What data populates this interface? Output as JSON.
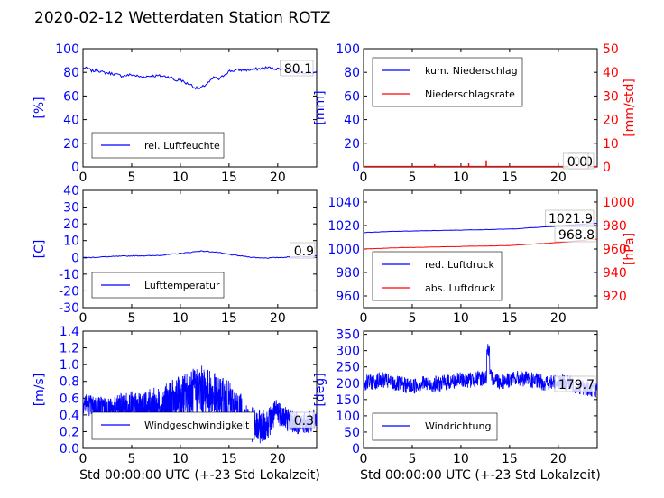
{
  "figure": {
    "title": "2020-02-12 Wetterdaten Station ROTZ"
  },
  "chart_data": [
    {
      "type": "line",
      "ylabel": "[%]",
      "ylim": [
        0,
        100
      ],
      "yticks": [
        0,
        20,
        40,
        60,
        80,
        100
      ],
      "xlim": [
        0,
        24
      ],
      "xticks": [
        0,
        5,
        10,
        15,
        20
      ],
      "legend_placement": "lower-left",
      "series": [
        {
          "name": "rel. Luftfeuchte",
          "color": "#0000ff",
          "x": [
            0,
            0.5,
            1,
            1.5,
            2,
            3,
            4,
            5,
            6,
            7,
            8,
            9,
            9.5,
            10,
            10.5,
            11,
            11.5,
            12,
            12.5,
            13,
            13.5,
            14,
            14.5,
            15,
            16,
            17,
            18,
            19,
            20,
            21,
            22,
            23,
            24
          ],
          "values": [
            84,
            83,
            81,
            82,
            80,
            79,
            77,
            78,
            76,
            77,
            77,
            76,
            73,
            74,
            71,
            70,
            67,
            66,
            69,
            72,
            76,
            74,
            78,
            81,
            82,
            82,
            83,
            84,
            83,
            82,
            80,
            80,
            80
          ]
        }
      ],
      "annotation": "80.1"
    },
    {
      "type": "line",
      "ylabel": "[mm]",
      "ylim": [
        0,
        100
      ],
      "yticks": [
        0,
        20,
        40,
        60,
        80,
        100
      ],
      "ylabel_right": "[mm/std]",
      "ylim_right": [
        0,
        50
      ],
      "yticks_right": [
        0,
        10,
        20,
        30,
        40,
        50
      ],
      "xlim": [
        0,
        24
      ],
      "xticks": [
        0,
        5,
        10,
        15,
        20
      ],
      "legend_placement": "top-left",
      "series": [
        {
          "name": "kum. Niederschlag",
          "color": "#0000ff",
          "axis": "left",
          "x": [
            0,
            24
          ],
          "values": [
            0,
            0
          ]
        },
        {
          "name": "Niederschlagsrate",
          "color": "#ff0000",
          "axis": "right",
          "spikes": [
            [
              7.3,
              1.2
            ],
            [
              10.8,
              1.5
            ],
            [
              12.6,
              2.8
            ]
          ]
        }
      ],
      "annotations": [
        "0.0",
        "0.0"
      ]
    },
    {
      "type": "line",
      "ylabel": "[C]",
      "ylim": [
        -30,
        40
      ],
      "yticks": [
        -30,
        -20,
        -10,
        0,
        10,
        20,
        30,
        40
      ],
      "xlim": [
        0,
        24
      ],
      "xticks": [
        0,
        5,
        10,
        15,
        20
      ],
      "legend_placement": "lower-left",
      "series": [
        {
          "name": "Lufttemperatur",
          "color": "#0000ff",
          "x": [
            0,
            1,
            2,
            3,
            4,
            5,
            6,
            7,
            8,
            9,
            10,
            11,
            12,
            13,
            14,
            15,
            16,
            17,
            18,
            19,
            20,
            21,
            22,
            23,
            24
          ],
          "values": [
            -0.3,
            0,
            0.3,
            0.5,
            0.7,
            0.9,
            1.0,
            1.0,
            1.3,
            1.8,
            2.4,
            3.0,
            3.8,
            3.5,
            2.8,
            1.8,
            1.0,
            0.3,
            -0.2,
            -0.3,
            -0.1,
            0.2,
            0.5,
            0.7,
            0.9
          ]
        }
      ],
      "annotation": "0.9"
    },
    {
      "type": "line",
      "ylabel_right": "[hPa]",
      "ylim": [
        950,
        1050
      ],
      "yticks": [
        960,
        980,
        1000,
        1020,
        1040
      ],
      "ylim_right": [
        910,
        1010
      ],
      "yticks_right": [
        920,
        940,
        960,
        980,
        1000
      ],
      "xlim": [
        0,
        24
      ],
      "xticks": [
        0,
        5,
        10,
        15,
        20
      ],
      "legend_placement": "lower-left",
      "series": [
        {
          "name": "red. Luftdruck",
          "color": "#0000ff",
          "axis": "left",
          "x": [
            0,
            3,
            6,
            9,
            12,
            15,
            17,
            20,
            22,
            24
          ],
          "values": [
            1014,
            1015,
            1015.5,
            1016,
            1016.5,
            1017,
            1018,
            1019.5,
            1021,
            1022
          ]
        },
        {
          "name": "abs. Luftdruck",
          "color": "#ff0000",
          "axis": "right",
          "x": [
            0,
            3,
            6,
            9,
            12,
            15,
            17,
            20,
            22,
            24
          ],
          "values": [
            960,
            961,
            961.5,
            962,
            962.5,
            963,
            964,
            965.5,
            967,
            968.5
          ]
        }
      ],
      "annotations": [
        "1021.9",
        "968.8"
      ]
    },
    {
      "type": "line",
      "ylabel": "[m/s]",
      "ylim": [
        0,
        1.4
      ],
      "yticks": [
        0.0,
        0.2,
        0.4,
        0.6,
        0.8,
        1.0,
        1.2,
        1.4
      ],
      "xlim": [
        0,
        24
      ],
      "xticks": [
        0,
        5,
        10,
        15,
        20
      ],
      "xlabel": "Std 00:00:00 UTC (+-23 Std Lokalzeit)",
      "legend_placement": "lower-left",
      "series": [
        {
          "name": "Windgeschwindigkeit",
          "color": "#0000ff",
          "x": [
            0,
            1,
            2,
            3,
            4,
            5,
            6,
            7,
            8,
            9,
            10,
            11,
            12,
            13,
            14,
            15,
            16,
            17,
            18,
            19,
            20,
            21,
            22,
            23,
            24
          ],
          "values": [
            0.55,
            0.5,
            0.5,
            0.45,
            0.5,
            0.5,
            0.45,
            0.5,
            0.5,
            0.55,
            0.6,
            0.65,
            0.7,
            0.65,
            0.6,
            0.55,
            0.45,
            0.3,
            0.25,
            0.3,
            0.45,
            0.35,
            0.3,
            0.3,
            0.35
          ]
        }
      ],
      "annotation": "0.3"
    },
    {
      "type": "line",
      "ylabel": "[deg]",
      "ylim": [
        0,
        360
      ],
      "yticks": [
        0,
        50,
        100,
        150,
        200,
        250,
        300,
        350
      ],
      "xlim": [
        0,
        24
      ],
      "xticks": [
        0,
        5,
        10,
        15,
        20
      ],
      "xlabel": "Std 00:00:00 UTC (+-23 Std Lokalzeit)",
      "legend_placement": "lower-left",
      "series": [
        {
          "name": "Windrichtung",
          "color": "#0000ff",
          "x": [
            0,
            1,
            2,
            3,
            4,
            5,
            6,
            7,
            8,
            9,
            10,
            11,
            12,
            12.8,
            13.5,
            14,
            15,
            16,
            17,
            18,
            19,
            20,
            21,
            22,
            23,
            24
          ],
          "values": [
            200,
            205,
            210,
            200,
            195,
            190,
            200,
            195,
            200,
            205,
            210,
            210,
            215,
            220,
            215,
            205,
            210,
            215,
            210,
            205,
            200,
            205,
            200,
            190,
            185,
            180
          ]
        }
      ],
      "annotation": "179.7"
    }
  ]
}
